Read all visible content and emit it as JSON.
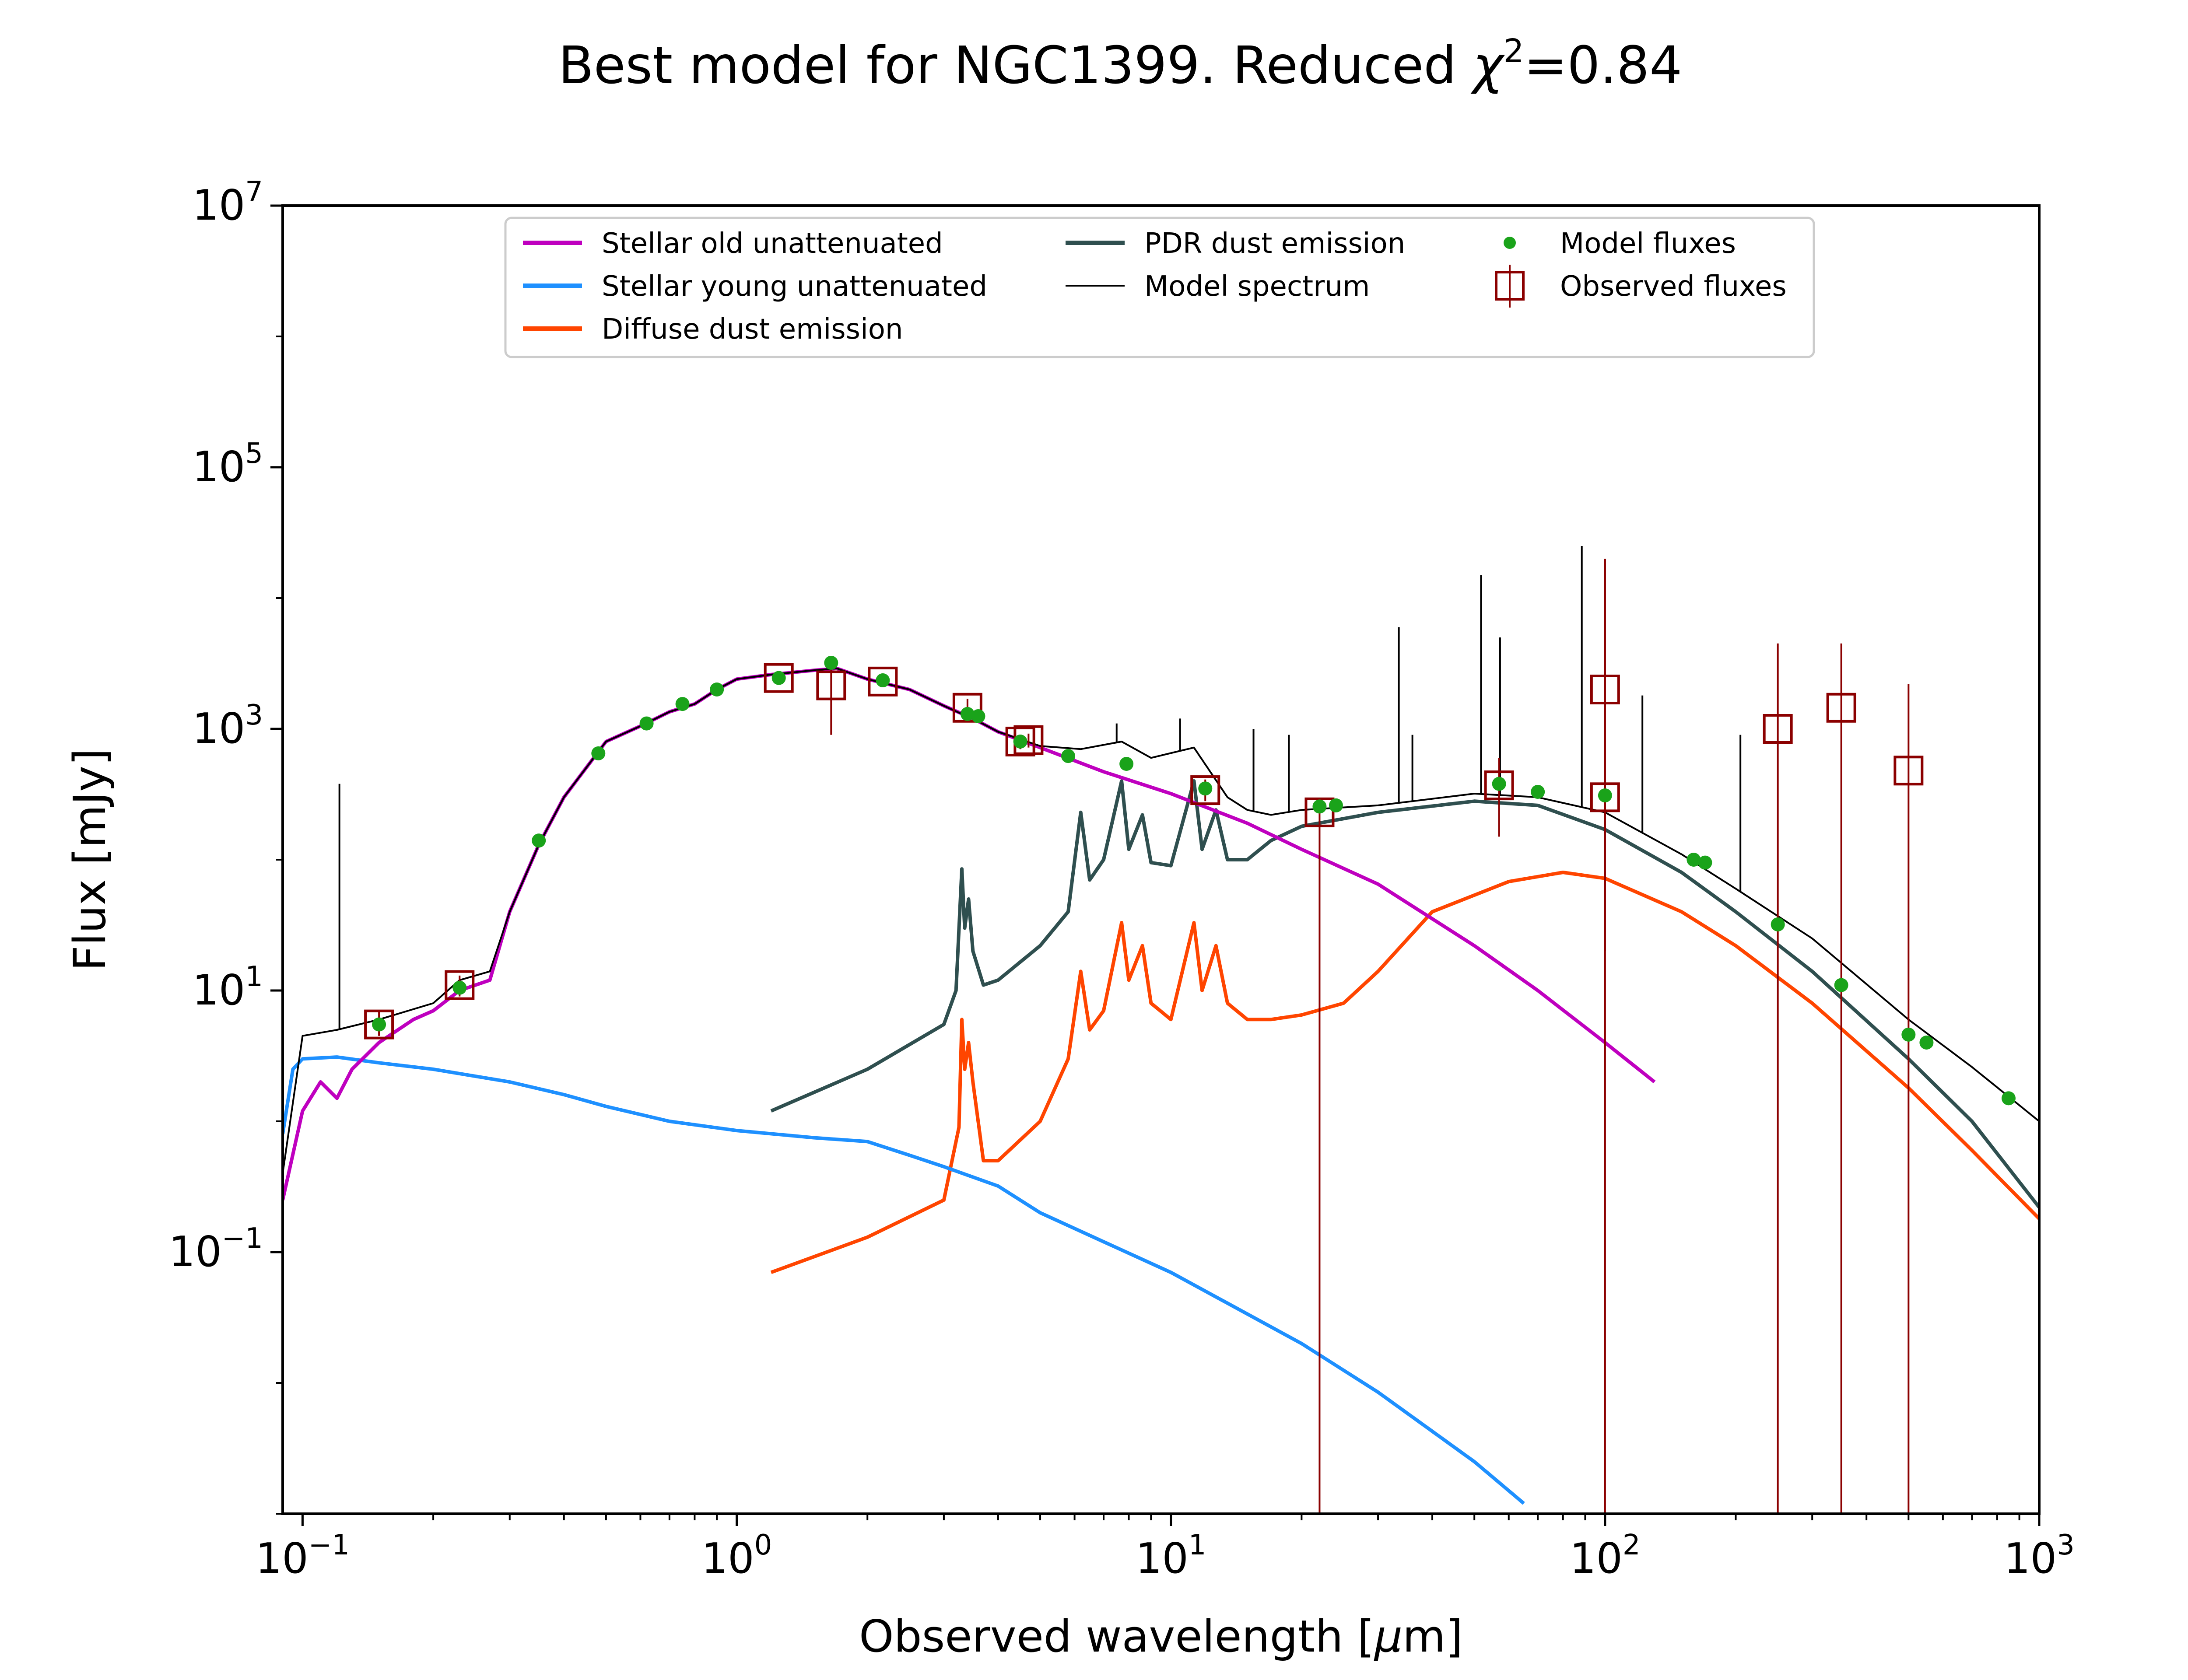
{
  "chart_data": {
    "type": "line",
    "title": {
      "prefix": "Best model for NGC1399. Reduced ",
      "symbol": "χ",
      "superscript": "2",
      "suffix": "=0.84"
    },
    "xlabel": {
      "text": "Observed wavelength [",
      "unit_symbol": "μ",
      "unit_rest": "m]"
    },
    "ylabel": "Flux [mJy]",
    "xscale": "log",
    "yscale": "log",
    "xlim": [
      0.09,
      1000
    ],
    "ylim": [
      0.001,
      10000000
    ],
    "x_ticks": [
      {
        "value": 0.1,
        "base": "10",
        "exp": "−1"
      },
      {
        "value": 1,
        "base": "10",
        "exp": "0"
      },
      {
        "value": 10,
        "base": "10",
        "exp": "1"
      },
      {
        "value": 100,
        "base": "10",
        "exp": "2"
      },
      {
        "value": 1000,
        "base": "10",
        "exp": "3"
      }
    ],
    "y_ticks": [
      {
        "value": 0.1,
        "base": "10",
        "exp": "−1"
      },
      {
        "value": 10,
        "base": "10",
        "exp": "1"
      },
      {
        "value": 1000,
        "base": "10",
        "exp": "3"
      },
      {
        "value": 100000,
        "base": "10",
        "exp": "5"
      },
      {
        "value": 10000000,
        "base": "10",
        "exp": "7"
      }
    ],
    "grid": false,
    "legend_position": "top-center",
    "colors": {
      "stellar_old": "#bf00bf",
      "stellar_young": "#1e90ff",
      "diffuse_dust": "#ff4500",
      "pdr_dust": "#2f4f4f",
      "model_spectrum": "#000000",
      "model_fluxes": "#1aa31a",
      "observed_fluxes": "#8b0000"
    },
    "series": [
      {
        "name": "Stellar old unattenuated",
        "points": [
          [
            0.09,
            0.25
          ],
          [
            0.1,
            1.2
          ],
          [
            0.11,
            2.0
          ],
          [
            0.12,
            1.5
          ],
          [
            0.13,
            2.5
          ],
          [
            0.15,
            4.0
          ],
          [
            0.18,
            6.0
          ],
          [
            0.2,
            7.0
          ],
          [
            0.23,
            10
          ],
          [
            0.27,
            12
          ],
          [
            0.3,
            40
          ],
          [
            0.35,
            130
          ],
          [
            0.4,
            300
          ],
          [
            0.5,
            800
          ],
          [
            0.6,
            1050
          ],
          [
            0.7,
            1350
          ],
          [
            0.8,
            1550
          ],
          [
            0.9,
            2000
          ],
          [
            1.0,
            2400
          ],
          [
            1.2,
            2600
          ],
          [
            1.5,
            2800
          ],
          [
            1.7,
            2900
          ],
          [
            2.0,
            2400
          ],
          [
            2.5,
            2000
          ],
          [
            3.0,
            1500
          ],
          [
            3.5,
            1200
          ],
          [
            4.0,
            950
          ],
          [
            5.0,
            720
          ],
          [
            7.0,
            470
          ],
          [
            10,
            320
          ],
          [
            15,
            190
          ],
          [
            20,
            120
          ],
          [
            30,
            65
          ],
          [
            50,
            22
          ],
          [
            70,
            10
          ],
          [
            100,
            4.0
          ],
          [
            130,
            2.0
          ]
        ]
      },
      {
        "name": "Stellar young unattenuated",
        "points": [
          [
            0.09,
            0.8
          ],
          [
            0.095,
            2.5
          ],
          [
            0.1,
            3.0
          ],
          [
            0.12,
            3.1
          ],
          [
            0.15,
            2.8
          ],
          [
            0.2,
            2.5
          ],
          [
            0.3,
            2.0
          ],
          [
            0.4,
            1.6
          ],
          [
            0.5,
            1.3
          ],
          [
            0.7,
            1.0
          ],
          [
            1.0,
            0.85
          ],
          [
            1.5,
            0.75
          ],
          [
            2.0,
            0.7
          ],
          [
            2.5,
            0.55
          ],
          [
            3.0,
            0.45
          ],
          [
            4.0,
            0.32
          ],
          [
            5.0,
            0.2
          ],
          [
            7.0,
            0.12
          ],
          [
            10,
            0.07
          ],
          [
            20,
            0.02
          ],
          [
            30,
            0.0085
          ],
          [
            50,
            0.0025
          ],
          [
            65,
            0.0012
          ]
        ]
      },
      {
        "name": "Diffuse dust emission",
        "points": [
          [
            1.2,
            0.07
          ],
          [
            2.0,
            0.13
          ],
          [
            3.0,
            0.25
          ],
          [
            3.25,
            0.9
          ],
          [
            3.3,
            6.0
          ],
          [
            3.35,
            2.5
          ],
          [
            3.42,
            4.0
          ],
          [
            3.5,
            2.0
          ],
          [
            3.7,
            0.5
          ],
          [
            4.0,
            0.5
          ],
          [
            5.0,
            1.0
          ],
          [
            5.8,
            3.0
          ],
          [
            6.2,
            14
          ],
          [
            6.5,
            5
          ],
          [
            7.0,
            7
          ],
          [
            7.7,
            33
          ],
          [
            8.0,
            12
          ],
          [
            8.6,
            22
          ],
          [
            9.0,
            8
          ],
          [
            10,
            6
          ],
          [
            11.3,
            33
          ],
          [
            11.8,
            10
          ],
          [
            12.7,
            22
          ],
          [
            13.5,
            8
          ],
          [
            15,
            6
          ],
          [
            17,
            6
          ],
          [
            20,
            6.5
          ],
          [
            25,
            8
          ],
          [
            30,
            14
          ],
          [
            40,
            40
          ],
          [
            60,
            68
          ],
          [
            80,
            80
          ],
          [
            100,
            72
          ],
          [
            150,
            40
          ],
          [
            200,
            22
          ],
          [
            300,
            8
          ],
          [
            500,
            1.8
          ],
          [
            700,
            0.6
          ],
          [
            1000,
            0.18
          ]
        ]
      },
      {
        "name": "PDR dust emission",
        "points": [
          [
            1.2,
            1.2
          ],
          [
            2.0,
            2.5
          ],
          [
            3.0,
            5.5
          ],
          [
            3.2,
            10
          ],
          [
            3.3,
            85
          ],
          [
            3.35,
            30
          ],
          [
            3.42,
            50
          ],
          [
            3.5,
            20
          ],
          [
            3.7,
            11
          ],
          [
            4.0,
            12
          ],
          [
            5.0,
            22
          ],
          [
            5.8,
            40
          ],
          [
            6.2,
            230
          ],
          [
            6.5,
            70
          ],
          [
            7.0,
            100
          ],
          [
            7.7,
            400
          ],
          [
            8.0,
            120
          ],
          [
            8.6,
            220
          ],
          [
            9.0,
            95
          ],
          [
            10,
            90
          ],
          [
            11.3,
            400
          ],
          [
            11.8,
            120
          ],
          [
            12.7,
            240
          ],
          [
            13.5,
            100
          ],
          [
            15,
            100
          ],
          [
            17,
            140
          ],
          [
            20,
            180
          ],
          [
            30,
            230
          ],
          [
            50,
            280
          ],
          [
            70,
            260
          ],
          [
            100,
            170
          ],
          [
            150,
            80
          ],
          [
            200,
            40
          ],
          [
            300,
            14
          ],
          [
            500,
            3
          ],
          [
            700,
            1.0
          ],
          [
            1000,
            0.22
          ]
        ]
      },
      {
        "name": "Model spectrum",
        "points": [
          [
            0.09,
            0.4
          ],
          [
            0.1,
            4.5
          ],
          [
            0.12,
            5.0
          ],
          [
            0.15,
            6.0
          ],
          [
            0.2,
            8.0
          ],
          [
            0.23,
            12
          ],
          [
            0.27,
            14
          ],
          [
            0.3,
            40
          ],
          [
            0.35,
            130
          ],
          [
            0.4,
            300
          ],
          [
            0.5,
            800
          ],
          [
            0.6,
            1050
          ],
          [
            0.7,
            1350
          ],
          [
            0.8,
            1550
          ],
          [
            0.9,
            2000
          ],
          [
            1.0,
            2400
          ],
          [
            1.2,
            2600
          ],
          [
            1.5,
            2800
          ],
          [
            1.7,
            2900
          ],
          [
            2.0,
            2400
          ],
          [
            2.5,
            2000
          ],
          [
            3.0,
            1500
          ],
          [
            3.3,
            1300
          ],
          [
            3.5,
            1200
          ],
          [
            4.0,
            950
          ],
          [
            5.0,
            740
          ],
          [
            6.2,
            700
          ],
          [
            7.7,
            800
          ],
          [
            9.0,
            600
          ],
          [
            11.3,
            720
          ],
          [
            13.5,
            300
          ],
          [
            15,
            240
          ],
          [
            17,
            220
          ],
          [
            20,
            240
          ],
          [
            30,
            260
          ],
          [
            50,
            320
          ],
          [
            70,
            300
          ],
          [
            100,
            230
          ],
          [
            150,
            110
          ],
          [
            200,
            60
          ],
          [
            300,
            25
          ],
          [
            500,
            6
          ],
          [
            700,
            2.6
          ],
          [
            1000,
            1.0
          ]
        ]
      },
      {
        "name": "Model spectrum lines",
        "lines": [
          [
            0.1216,
            380
          ],
          [
            7.5,
            1100
          ],
          [
            10.5,
            1200
          ],
          [
            15.5,
            1000
          ],
          [
            18.7,
            900
          ],
          [
            33.5,
            6000
          ],
          [
            36.0,
            900
          ],
          [
            51.8,
            15000
          ],
          [
            57.3,
            5000
          ],
          [
            88.4,
            25000
          ],
          [
            121.9,
            1800
          ],
          [
            205,
            900
          ]
        ]
      },
      {
        "name": "Model fluxes",
        "points": [
          [
            0.15,
            5.5
          ],
          [
            0.23,
            10.5
          ],
          [
            0.35,
            140
          ],
          [
            0.48,
            650
          ],
          [
            0.62,
            1100
          ],
          [
            0.75,
            1550
          ],
          [
            0.9,
            2000
          ],
          [
            1.25,
            2450
          ],
          [
            1.65,
            3200
          ],
          [
            2.17,
            2350
          ],
          [
            3.4,
            1300
          ],
          [
            3.6,
            1250
          ],
          [
            4.5,
            800
          ],
          [
            5.8,
            620
          ],
          [
            7.9,
            540
          ],
          [
            12,
            350
          ],
          [
            22,
            255
          ],
          [
            24,
            260
          ],
          [
            57,
            380
          ],
          [
            70,
            330
          ],
          [
            100,
            310
          ],
          [
            160,
            100
          ],
          [
            170,
            95
          ],
          [
            250,
            32
          ],
          [
            350,
            11
          ],
          [
            500,
            4.6
          ],
          [
            550,
            4.0
          ],
          [
            850,
            1.5
          ]
        ]
      },
      {
        "name": "Observed fluxes",
        "points": [
          {
            "x": 0.15,
            "y": 5.5,
            "err_lo": 4.5,
            "err_hi": 7.0
          },
          {
            "x": 0.23,
            "y": 11,
            "err_lo": 9.0,
            "err_hi": 13
          },
          {
            "x": 1.25,
            "y": 2450,
            "err_lo": 2300,
            "err_hi": 2600
          },
          {
            "x": 1.65,
            "y": 2150,
            "err_lo": 900,
            "err_hi": 3300
          },
          {
            "x": 2.17,
            "y": 2300,
            "err_lo": 2100,
            "err_hi": 2500
          },
          {
            "x": 3.4,
            "y": 1450,
            "err_lo": 1200,
            "err_hi": 1700
          },
          {
            "x": 4.5,
            "y": 800,
            "err_lo": 700,
            "err_hi": 900
          },
          {
            "x": 4.7,
            "y": 820,
            "err_lo": 720,
            "err_hi": 920
          },
          {
            "x": 12,
            "y": 340,
            "err_lo": 280,
            "err_hi": 410
          },
          {
            "x": 22,
            "y": 230,
            "err_lo": 0.001,
            "err_hi": 270
          },
          {
            "x": 57,
            "y": 370,
            "err_lo": 150,
            "err_hi": 600
          },
          {
            "x": 100,
            "y": 2000,
            "err_lo": 20,
            "err_hi": 20000
          },
          {
            "x": 100,
            "y": 300,
            "err_lo": 0.001,
            "err_hi": 20000
          },
          {
            "x": 250,
            "y": 1000,
            "err_lo": 0.001,
            "err_hi": 4500
          },
          {
            "x": 350,
            "y": 1450,
            "err_lo": 0.001,
            "err_hi": 4500
          },
          {
            "x": 500,
            "y": 480,
            "err_lo": 0.001,
            "err_hi": 2200
          }
        ]
      }
    ]
  }
}
